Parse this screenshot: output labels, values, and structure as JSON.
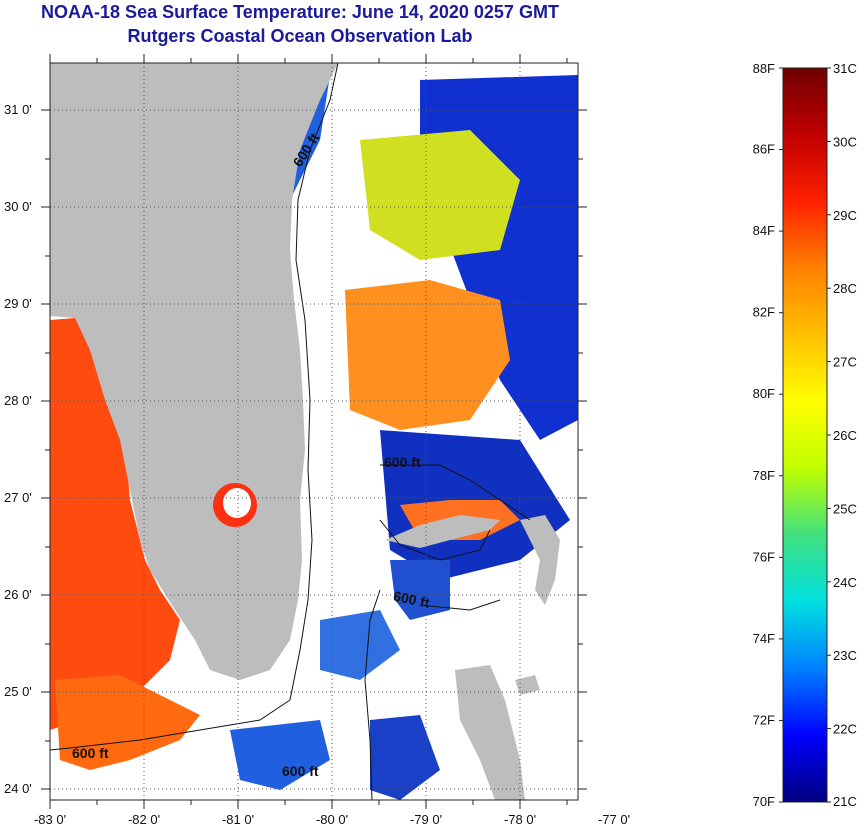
{
  "title_line1": "NOAA-18 Sea Surface Temperature:  June 14, 2020 0257 GMT",
  "title_line2": "Rutgers Coastal Ocean Observation Lab",
  "map": {
    "lon_ticks": [
      "-83 0'",
      "-82 0'",
      "-81 0'",
      "-80 0'",
      "-79 0'",
      "-78 0'",
      "-77 0'"
    ],
    "lat_ticks": [
      "31 0'",
      "30 0'",
      "29 0'",
      "28 0'",
      "27 0'",
      "26 0'",
      "25 0'",
      "24 0'"
    ],
    "isobath_labels": [
      "600 ft",
      "600 ft",
      "600 ft",
      "600 ft",
      "600 ft"
    ],
    "land_color": "#bdbdbd",
    "cloud_color": "#ffffff"
  },
  "colorbar": {
    "fahrenheit_labels": [
      "88F",
      "86F",
      "84F",
      "82F",
      "80F",
      "78F",
      "76F",
      "74F",
      "72F",
      "70F"
    ],
    "celsius_labels": [
      "31C",
      "30C",
      "29C",
      "28C",
      "27C",
      "26C",
      "25C",
      "24C",
      "23C",
      "22C",
      "21C"
    ],
    "colors": [
      "#000080",
      "#0000ff",
      "#0080ff",
      "#00e0e0",
      "#40e080",
      "#c0ff00",
      "#ffff00",
      "#ffc000",
      "#ff8000",
      "#ff2000",
      "#c00000",
      "#700000"
    ]
  }
}
